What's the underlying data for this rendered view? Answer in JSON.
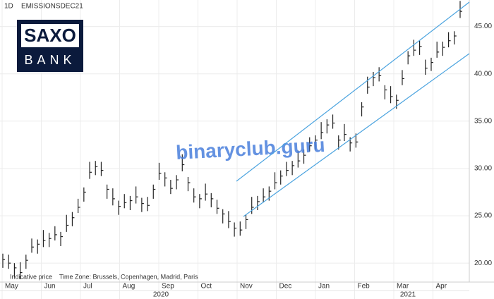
{
  "chart_data": {
    "type": "ohlc",
    "symbol_bar": {
      "interval": "1D",
      "symbol": "EMISSIONSDEC21"
    },
    "logo": {
      "top": "SAXO",
      "bottom": "BANK"
    },
    "watermark": "binaryclub.guru",
    "footnote": "Indicative price    Time Zone: Brussels, Copenhagen, Madrid, Paris",
    "color": "#222222",
    "channel_color": "#4aa3df",
    "ylim": [
      18,
      47.8
    ],
    "yticks": [
      {
        "value": 20,
        "label": "20.00"
      },
      {
        "value": 25,
        "label": "25.00"
      },
      {
        "value": 30,
        "label": "30.00"
      },
      {
        "value": 35,
        "label": "35.00"
      },
      {
        "value": 40,
        "label": "40.00"
      },
      {
        "value": 45,
        "label": "45.00"
      }
    ],
    "grid": true,
    "months": [
      "May",
      "Jun",
      "Jul",
      "Aug",
      "Sep",
      "Oct",
      "Nov",
      "Dec",
      "Jan",
      "Feb",
      "Mar",
      "Apr"
    ],
    "years": [
      "2020",
      "2021"
    ],
    "close": [
      20.4,
      20.0,
      19.5,
      19.0,
      20.3,
      21.7,
      22.0,
      22.4,
      22.6,
      23.0,
      22.8,
      24.0,
      24.8,
      25.9,
      27.5,
      29.6,
      30.2,
      29.8,
      27.8,
      26.8,
      26.0,
      26.4,
      26.6,
      27.0,
      26.3,
      26.1,
      27.8,
      29.5,
      29.0,
      27.9,
      28.8,
      30.4,
      28.5,
      27.0,
      26.8,
      27.3,
      26.8,
      25.8,
      25.2,
      24.4,
      23.7,
      23.5,
      24.6,
      25.9,
      26.5,
      27.0,
      27.6,
      28.5,
      29.2,
      29.8,
      30.3,
      30.8,
      31.4,
      32.4,
      33.0,
      33.8,
      34.6,
      34.8,
      33.0,
      33.6,
      32.7,
      32.8,
      36.5,
      38.6,
      39.6,
      39.8,
      38.3,
      37.6,
      37.2,
      39.5,
      41.9,
      42.5,
      42.9,
      40.6,
      41.2,
      42.3,
      42.8,
      43.5,
      44.0,
      46.6
    ],
    "high": [
      21.0,
      20.9,
      20.0,
      20.1,
      20.9,
      22.6,
      22.5,
      23.5,
      23.2,
      23.9,
      23.3,
      25.1,
      25.4,
      26.8,
      28.0,
      30.7,
      30.8,
      30.7,
      28.3,
      27.9,
      26.6,
      27.3,
      27.1,
      28.1,
      26.9,
      27.0,
      28.3,
      30.6,
      29.6,
      28.8,
      29.3,
      31.5,
      29.1,
      27.9,
      27.3,
      28.4,
      27.4,
      26.7,
      25.7,
      25.5,
      24.3,
      24.4,
      25.1,
      27.0,
      27.1,
      27.9,
      28.1,
      29.6,
      29.8,
      30.7,
      30.8,
      31.9,
      32.0,
      33.3,
      33.5,
      34.9,
      35.2,
      35.7,
      33.5,
      34.7,
      33.3,
      33.7,
      37.0,
      39.7,
      40.2,
      40.7,
      38.8,
      38.7,
      37.8,
      40.4,
      42.4,
      43.6,
      43.5,
      41.5,
      41.7,
      43.4,
      43.4,
      44.4,
      44.5,
      47.7
    ],
    "low": [
      19.5,
      19.4,
      18.5,
      18.3,
      19.4,
      21.1,
      21.0,
      21.7,
      21.7,
      22.4,
      21.8,
      23.3,
      23.9,
      25.3,
      26.5,
      28.9,
      29.3,
      29.2,
      26.8,
      26.1,
      25.1,
      25.8,
      25.6,
      26.3,
      25.4,
      25.5,
      26.8,
      28.8,
      28.1,
      27.3,
      27.8,
      29.7,
      27.6,
      26.4,
      25.8,
      26.6,
      25.9,
      25.2,
      24.2,
      23.7,
      22.8,
      22.9,
      23.6,
      25.2,
      25.6,
      26.4,
      26.6,
      27.8,
      28.3,
      29.2,
      29.3,
      30.1,
      30.5,
      31.8,
      32.0,
      33.1,
      33.7,
      34.2,
      32.0,
      32.9,
      31.8,
      32.2,
      35.5,
      37.9,
      38.7,
      39.2,
      37.3,
      36.9,
      36.3,
      38.8,
      41.0,
      41.9,
      42.0,
      39.9,
      40.3,
      41.7,
      41.9,
      42.8,
      43.1,
      45.9
    ]
  }
}
